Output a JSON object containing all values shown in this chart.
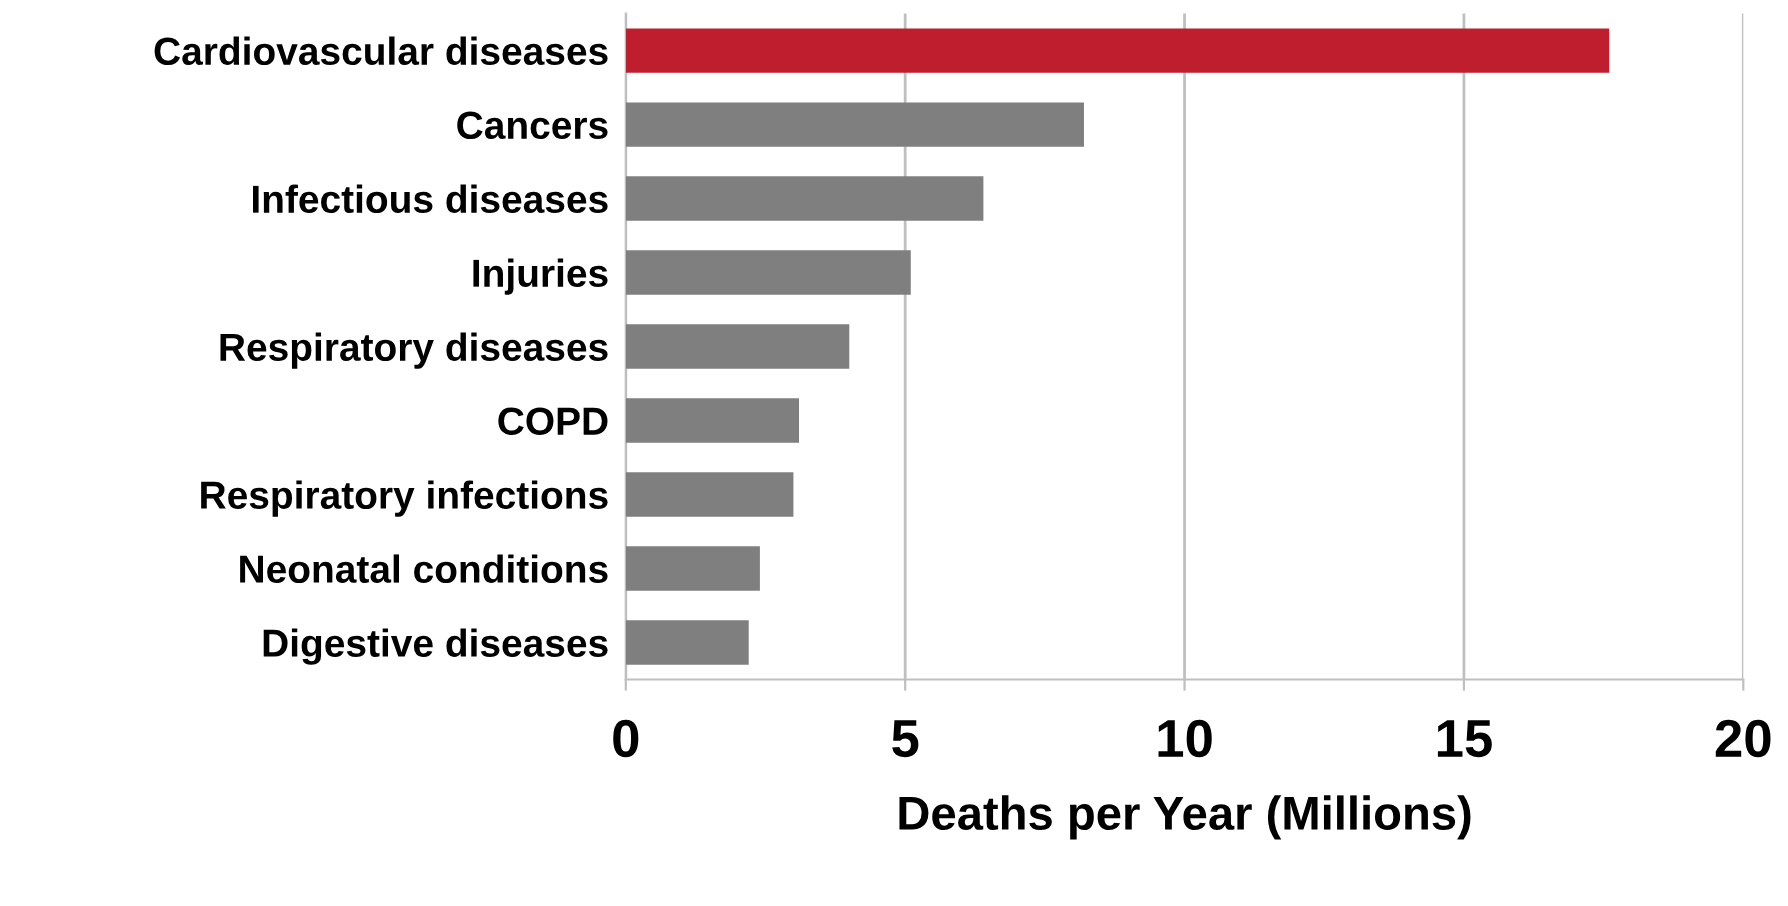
{
  "chart_data": {
    "type": "bar",
    "orientation": "horizontal",
    "xlabel": "Deaths per Year (Millions)",
    "categories": [
      "Cardiovascular diseases",
      "Cancers",
      "Infectious diseases",
      "Injuries",
      "Respiratory diseases",
      "COPD",
      "Respiratory infections",
      "Neonatal conditions",
      "Digestive diseases"
    ],
    "values": [
      17.6,
      8.2,
      6.4,
      5.1,
      4.0,
      3.1,
      3.0,
      2.4,
      2.2
    ],
    "colors": [
      "#be1e2d",
      "#7f7f7f",
      "#7f7f7f",
      "#7f7f7f",
      "#7f7f7f",
      "#7f7f7f",
      "#7f7f7f",
      "#7f7f7f",
      "#7f7f7f"
    ],
    "xlim": [
      0,
      20
    ],
    "xticks": [
      0,
      5,
      10,
      15,
      20
    ],
    "grid": "x"
  }
}
